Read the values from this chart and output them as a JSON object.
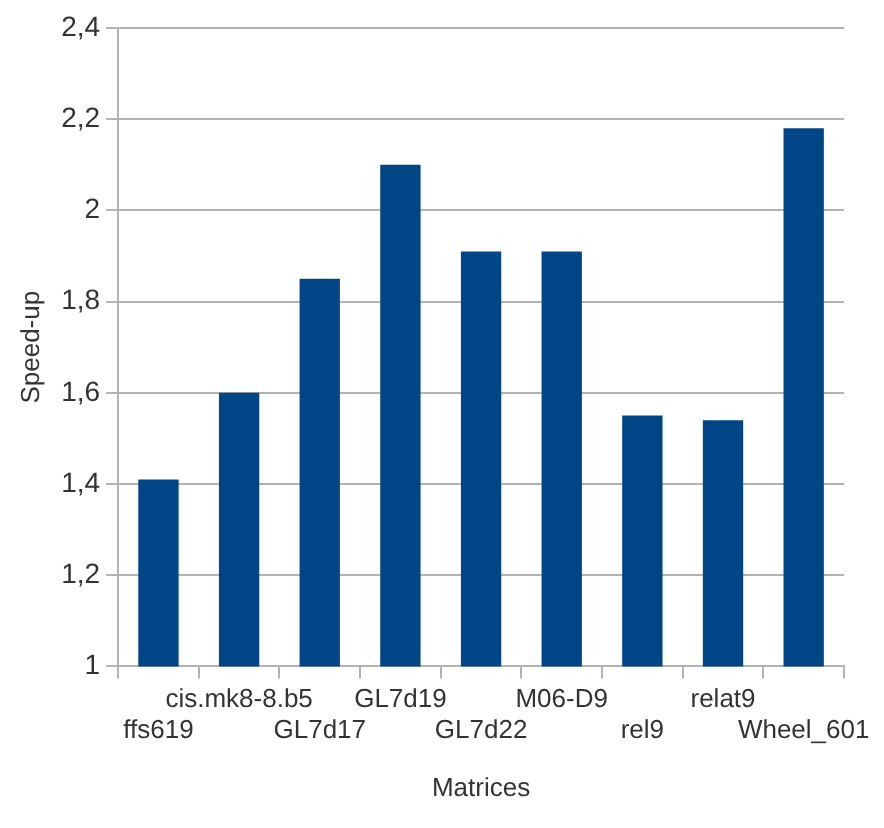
{
  "chart_data": {
    "type": "bar",
    "xlabel": "Matrices",
    "ylabel": "Speed-up",
    "categories": [
      "ffs619",
      "cis.mk8-8.b5",
      "GL7d17",
      "GL7d19",
      "GL7d22",
      "M06-D9",
      "rel9",
      "relat9",
      "Wheel_601"
    ],
    "values": [
      1.41,
      1.6,
      1.85,
      2.1,
      1.91,
      1.91,
      1.55,
      1.54,
      2.18
    ],
    "color": "#004586",
    "ylim": [
      1,
      2.4
    ],
    "yticks": [
      1,
      {
        "value": 1.2,
        "label": "1,2"
      },
      {
        "value": 1.4,
        "label": "1,4"
      },
      {
        "value": 1.6,
        "label": "1,6"
      },
      {
        "value": 1.8,
        "label": "1,8"
      },
      2,
      {
        "value": 2.2,
        "label": "2,2"
      },
      {
        "value": 2.4,
        "label": "2,4"
      }
    ],
    "grid": "y",
    "legend": false
  }
}
